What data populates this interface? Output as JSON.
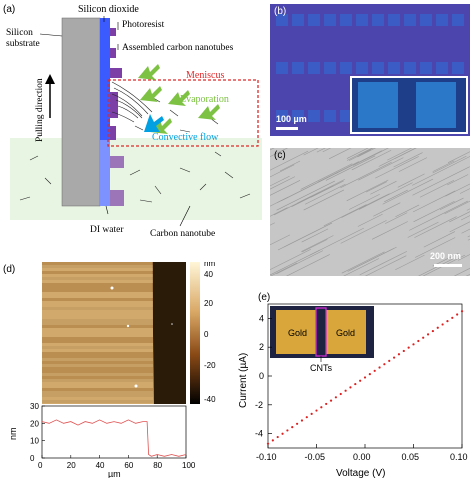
{
  "panel_a": {
    "label": "(a)",
    "silicon_dioxide": "Silicon dioxide",
    "photoresist": "Photoresist",
    "assembled_cnt": "Assembled carbon nanotubes",
    "silicon_substrate": [
      "Silicon",
      "substrate"
    ],
    "meniscus": "Meniscus",
    "evaporation": "Evaporation",
    "convective_flow": "Convective flow",
    "pulling_direction": "Pulling direction",
    "di_water": "DI water",
    "carbon_nanotube": "Carbon nanotube",
    "colors": {
      "meniscus_box": "#e0292b",
      "arrows": "#7dc242",
      "flow": "#00a0e3",
      "oxide": "#3b5bff",
      "resist": "#7b3fa6",
      "water": "#e8f5e2"
    }
  },
  "panel_b": {
    "label": "(b)",
    "scalebar": "100 µm"
  },
  "panel_c": {
    "label": "(c)",
    "scalebar": "200 nm"
  },
  "panel_d": {
    "label": "(d)",
    "colorbar_unit": "nm",
    "colorbar_ticks": [
      "40",
      "20",
      "0",
      "-20",
      "-40"
    ],
    "profile_ylabel": "nm",
    "profile_xlabel": "µm",
    "chart_data": {
      "type": "line",
      "x": [
        0,
        5,
        10,
        15,
        20,
        25,
        30,
        35,
        40,
        45,
        50,
        55,
        60,
        65,
        70,
        73,
        74,
        76,
        80,
        85,
        90,
        95,
        100
      ],
      "values": [
        21,
        20,
        22,
        20,
        21,
        19,
        21,
        20,
        22,
        20,
        21,
        20,
        22,
        20,
        21,
        21,
        2,
        1,
        2,
        1,
        2,
        1,
        2
      ],
      "xticks": [
        "0",
        "20",
        "40",
        "60",
        "80",
        "100"
      ],
      "yticks": [
        "0",
        "10",
        "20",
        "30"
      ],
      "xlim": [
        0,
        100
      ],
      "ylim": [
        0,
        30
      ],
      "color": "#e05050"
    }
  },
  "panel_e": {
    "label": "(e)",
    "inset_gold_left": "Gold",
    "inset_gold_right": "Gold",
    "inset_cnts": "CNTs",
    "chart_data": {
      "type": "scatter",
      "xlabel": "Voltage (V)",
      "ylabel": "Current (µA)",
      "xlim": [
        -0.1,
        0.1
      ],
      "ylim": [
        -5,
        5
      ],
      "xticks": [
        "-0.10",
        "-0.05",
        "0.00",
        "0.05",
        "0.10"
      ],
      "yticks": [
        "-4",
        "-2",
        "0",
        "2",
        "4"
      ],
      "x_start": -0.1,
      "x_end": 0.1,
      "y_start": -4.7,
      "y_end": 4.5,
      "points": 41,
      "color": "#dd2020"
    }
  }
}
